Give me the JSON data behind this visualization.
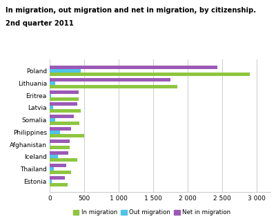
{
  "title1": "In migration, out migration and net in migration, by citizenship.",
  "title2": "2nd quarter 2011",
  "categories": [
    "Poland",
    "Lithuania",
    "Eritrea",
    "Latvia",
    "Somalia",
    "Philippines",
    "Afghanistan",
    "Iceland",
    "Thailand",
    "Estonia"
  ],
  "in_migration": [
    2900,
    1850,
    420,
    450,
    430,
    500,
    290,
    400,
    310,
    260
  ],
  "out_migration": [
    450,
    80,
    15,
    50,
    75,
    145,
    10,
    120,
    55,
    30
  ],
  "net_migration": [
    2430,
    1750,
    415,
    400,
    350,
    310,
    285,
    265,
    240,
    215
  ],
  "color_in": "#8dc63f",
  "color_out": "#4fc3e8",
  "color_net": "#9b59b6",
  "xlim": [
    0,
    3200
  ],
  "xticks": [
    0,
    500,
    1000,
    1500,
    2000,
    2500,
    3000
  ],
  "xtick_labels": [
    "0",
    "500",
    "1 000",
    "1 500",
    "2 000",
    "2 500",
    "3 000"
  ],
  "bar_height": 0.28,
  "background_color": "#ffffff",
  "grid_color": "#cccccc"
}
